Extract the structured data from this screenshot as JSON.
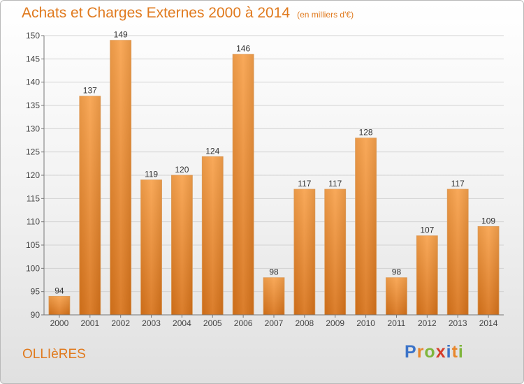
{
  "title": "Achats et Charges Externes 2000 à 2014",
  "subtitle": "(en milliers d'€)",
  "commune": "OLLIèRES",
  "brand": {
    "letters": [
      "P",
      "r",
      "o",
      "x",
      "i",
      "t",
      "i"
    ],
    "colors": [
      "#3b73c8",
      "#e8862a",
      "#7fb53c",
      "#d63c2a",
      "#3b73c8",
      "#e8862a",
      "#7fb53c"
    ]
  },
  "colors": {
    "bar": "#f0a050",
    "accent": "#e07a1e"
  },
  "chart_data": {
    "type": "bar",
    "categories": [
      "2000",
      "2001",
      "2002",
      "2003",
      "2004",
      "2005",
      "2006",
      "2007",
      "2008",
      "2009",
      "2010",
      "2011",
      "2012",
      "2013",
      "2014"
    ],
    "values": [
      94,
      137,
      149,
      119,
      120,
      124,
      146,
      98,
      117,
      117,
      128,
      98,
      107,
      117,
      109
    ],
    "ylim": [
      90,
      150
    ],
    "yticks": [
      90,
      95,
      100,
      105,
      110,
      115,
      120,
      125,
      130,
      135,
      140,
      145,
      150
    ],
    "grid": true
  }
}
